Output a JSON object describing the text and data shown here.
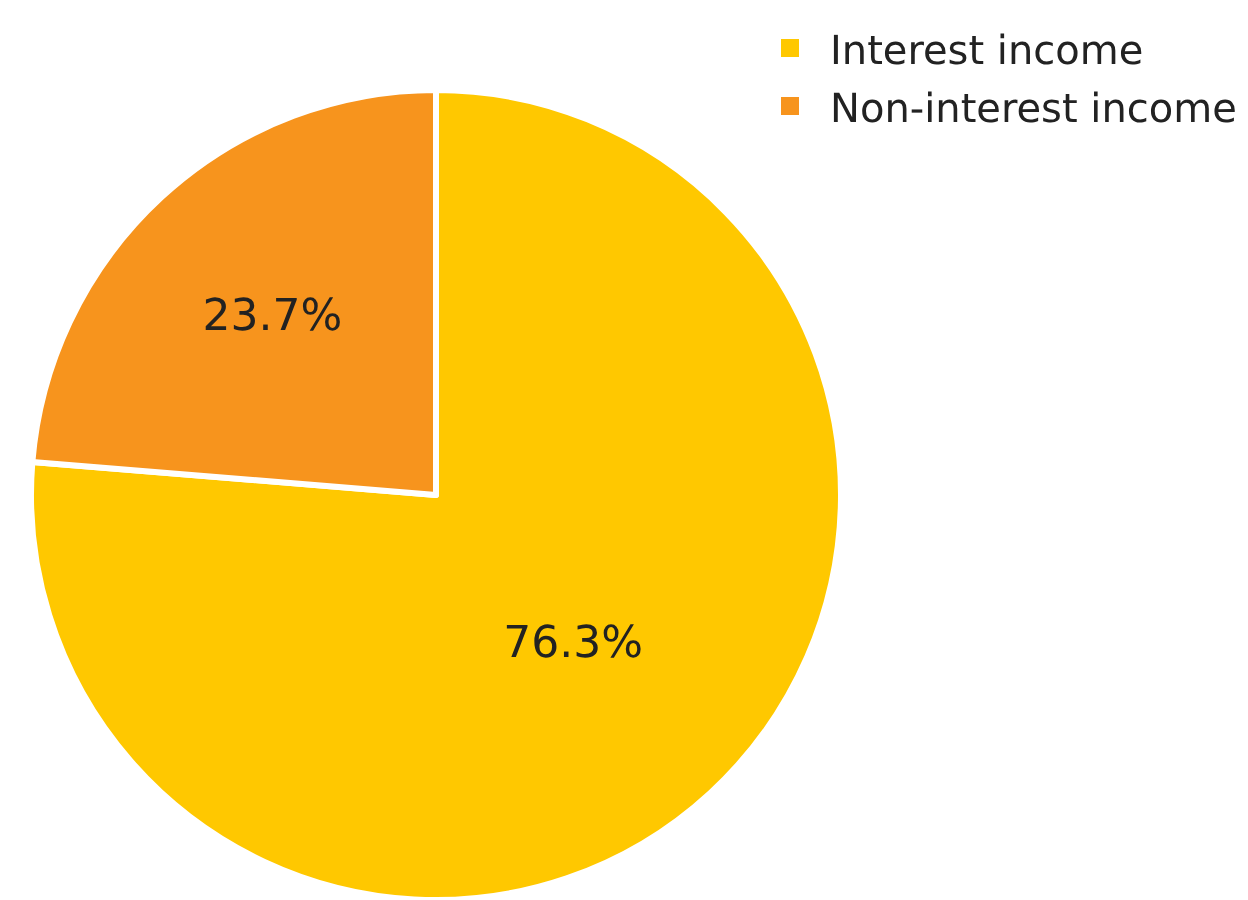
{
  "chart_data": {
    "type": "pie",
    "categories": [
      "Interest income",
      "Non-interest income"
    ],
    "values": [
      76.3,
      23.7
    ],
    "colors": [
      "#ffc800",
      "#f7941d"
    ],
    "value_labels": [
      "76.3%",
      "23.7%"
    ],
    "legend": "top right"
  }
}
